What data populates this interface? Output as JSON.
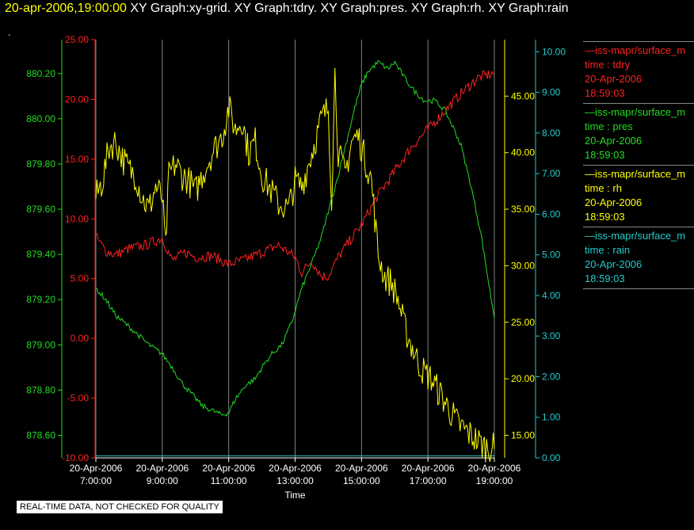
{
  "header": {
    "datetime": "20-apr-2006,19:00:00",
    "graphs": "XY Graph:xy-grid.  XY Graph:tdry.  XY Graph:pres.  XY Graph:rh.  XY Graph:rain"
  },
  "dot": ".",
  "quality_note": "REAL-TIME DATA, NOT CHECKED FOR QUALITY",
  "legend": [
    {
      "source": "—iss-mapr/surface_m",
      "field": "time : tdry",
      "date": "20-Apr-2006",
      "time": "18:59:03",
      "color": "#ff2020"
    },
    {
      "source": "—iss-mapr/surface_m",
      "field": "time : pres",
      "date": "20-Apr-2006",
      "time": "18:59:03",
      "color": "#22dd22"
    },
    {
      "source": "—iss-mapr/surface_m",
      "field": "time : rh",
      "date": "20-Apr-2006",
      "time": "18:59:03",
      "color": "#ffff00"
    },
    {
      "source": "—iss-mapr/surface_m",
      "field": "time : rain",
      "date": "20-Apr-2006",
      "time": "18:59:03",
      "color": "#22cccc"
    }
  ],
  "chart_data": {
    "type": "line",
    "xlabel": "Time",
    "x_ticks": [
      {
        "t": 7,
        "date": "20-Apr-2006",
        "time": "7:00:00"
      },
      {
        "t": 9,
        "date": "20-Apr-2006",
        "time": "9:00:00"
      },
      {
        "t": 11,
        "date": "20-Apr-2006",
        "time": "11:00:00"
      },
      {
        "t": 13,
        "date": "20-Apr-2006",
        "time": "13:00:00"
      },
      {
        "t": 15,
        "date": "20-Apr-2006",
        "time": "15:00:00"
      },
      {
        "t": 17,
        "date": "20-Apr-2006",
        "time": "17:00:00"
      },
      {
        "t": 19,
        "date": "20-Apr-2006",
        "time": "19:00:00"
      }
    ],
    "xlim": [
      7,
      19
    ],
    "grid": "vertical",
    "axes": {
      "tdry": {
        "color": "#ff2020",
        "ylim": [
          -10,
          25
        ],
        "ticks": [
          "-10.00",
          "-5.00",
          "0.00",
          "5.00",
          "10.00",
          "15.00",
          "20.00",
          "25.00"
        ]
      },
      "pres": {
        "color": "#22dd22",
        "ylim": [
          878.5,
          880.35
        ],
        "ticks": [
          "878.60",
          "878.80",
          "879.00",
          "879.20",
          "879.40",
          "879.60",
          "879.80",
          "880.00",
          "880.20"
        ]
      },
      "rh": {
        "color": "#ffff00",
        "ylim": [
          13,
          50
        ],
        "ticks": [
          "15.00",
          "20.00",
          "25.00",
          "30.00",
          "35.00",
          "40.00",
          "45.00"
        ]
      },
      "rain": {
        "color": "#22cccc",
        "ylim": [
          0,
          10.3
        ],
        "ticks": [
          "0.00",
          "1.00",
          "2.00",
          "3.00",
          "4.00",
          "5.00",
          "6.00",
          "7.00",
          "8.00",
          "9.00",
          "10.00"
        ]
      }
    },
    "series": [
      {
        "axis": "rain",
        "color": "#22cccc",
        "points": [
          [
            7,
            0.05
          ],
          [
            19,
            0.05
          ]
        ]
      },
      {
        "axis": "tdry",
        "color": "#ff2020",
        "points": [
          [
            7,
            8.5
          ],
          [
            7.3,
            7.3
          ],
          [
            7.6,
            7.0
          ],
          [
            8,
            7.5
          ],
          [
            8.5,
            7.8
          ],
          [
            9,
            8.4
          ],
          [
            9.3,
            6.5
          ],
          [
            9.7,
            7.2
          ],
          [
            10,
            6.8
          ],
          [
            10.5,
            6.9
          ],
          [
            11,
            6.2
          ],
          [
            11.5,
            6.6
          ],
          [
            12,
            7.2
          ],
          [
            12.5,
            7.8
          ],
          [
            13,
            6.8
          ],
          [
            13.2,
            5.5
          ],
          [
            13.5,
            6.5
          ],
          [
            13.8,
            5.2
          ],
          [
            14,
            5.2
          ],
          [
            14.3,
            6.8
          ],
          [
            14.6,
            8.0
          ],
          [
            15,
            9.5
          ],
          [
            15.5,
            12.0
          ],
          [
            16,
            14.0
          ],
          [
            16.5,
            16.0
          ],
          [
            17,
            17.5
          ],
          [
            17.5,
            19.0
          ],
          [
            18,
            20.5
          ],
          [
            18.5,
            21.8
          ],
          [
            19,
            22.2
          ]
        ]
      },
      {
        "axis": "rh",
        "color": "#ffff00",
        "points": [
          [
            7,
            36
          ],
          [
            7.2,
            37.5
          ],
          [
            7.4,
            40.5
          ],
          [
            7.6,
            41
          ],
          [
            7.8,
            39.5
          ],
          [
            8,
            38.5
          ],
          [
            8.2,
            38
          ],
          [
            8.4,
            36
          ],
          [
            8.6,
            35
          ],
          [
            8.8,
            37
          ],
          [
            9,
            36
          ],
          [
            9.1,
            31.5
          ],
          [
            9.2,
            38
          ],
          [
            9.4,
            39
          ],
          [
            9.6,
            38
          ],
          [
            9.8,
            37.5
          ],
          [
            10,
            36.5
          ],
          [
            10.2,
            38
          ],
          [
            10.5,
            40
          ],
          [
            10.8,
            41.5
          ],
          [
            11,
            44
          ],
          [
            11.2,
            42
          ],
          [
            11.4,
            43
          ],
          [
            11.6,
            40
          ],
          [
            11.8,
            41
          ],
          [
            12,
            38
          ],
          [
            12.2,
            37
          ],
          [
            12.5,
            35.5
          ],
          [
            12.8,
            35
          ],
          [
            13,
            37.5
          ],
          [
            13.2,
            37
          ],
          [
            13.4,
            39
          ],
          [
            13.6,
            41
          ],
          [
            13.8,
            43
          ],
          [
            14,
            44
          ],
          [
            14.1,
            36
          ],
          [
            14.2,
            47
          ],
          [
            14.3,
            40
          ],
          [
            14.5,
            38
          ],
          [
            14.7,
            41
          ],
          [
            14.9,
            41.5
          ],
          [
            15.1,
            39.5
          ],
          [
            15.3,
            37.5
          ],
          [
            15.5,
            31
          ],
          [
            15.7,
            29
          ],
          [
            15.9,
            28.5
          ],
          [
            16.1,
            27
          ],
          [
            16.3,
            24.5
          ],
          [
            16.5,
            23
          ],
          [
            16.7,
            21.5
          ],
          [
            16.9,
            20.5
          ],
          [
            17.1,
            20
          ],
          [
            17.3,
            19
          ],
          [
            17.5,
            18
          ],
          [
            17.7,
            17
          ],
          [
            17.9,
            16
          ],
          [
            18.1,
            15.5
          ],
          [
            18.3,
            15
          ],
          [
            18.5,
            14.5
          ],
          [
            18.7,
            14
          ],
          [
            18.9,
            14
          ],
          [
            19,
            13.8
          ]
        ]
      },
      {
        "axis": "pres",
        "color": "#22dd22",
        "points": [
          [
            7,
            879.25
          ],
          [
            7.3,
            879.2
          ],
          [
            7.6,
            879.13
          ],
          [
            8,
            879.08
          ],
          [
            8.3,
            879.04
          ],
          [
            8.6,
            879.0
          ],
          [
            9,
            878.96
          ],
          [
            9.3,
            878.9
          ],
          [
            9.6,
            878.83
          ],
          [
            9.9,
            878.78
          ],
          [
            10.2,
            878.73
          ],
          [
            10.5,
            878.71
          ],
          [
            10.8,
            878.69
          ],
          [
            11,
            878.7
          ],
          [
            11.2,
            878.76
          ],
          [
            11.5,
            878.82
          ],
          [
            11.8,
            878.85
          ],
          [
            12,
            878.9
          ],
          [
            12.3,
            878.96
          ],
          [
            12.6,
            879.0
          ],
          [
            12.9,
            879.1
          ],
          [
            13.2,
            879.25
          ],
          [
            13.5,
            879.36
          ],
          [
            13.8,
            879.48
          ],
          [
            14,
            879.59
          ],
          [
            14.3,
            879.75
          ],
          [
            14.6,
            879.93
          ],
          [
            14.8,
            880.05
          ],
          [
            15,
            880.15
          ],
          [
            15.2,
            880.21
          ],
          [
            15.5,
            880.25
          ],
          [
            15.8,
            880.22
          ],
          [
            16,
            880.25
          ],
          [
            16.3,
            880.18
          ],
          [
            16.6,
            880.12
          ],
          [
            16.9,
            880.08
          ],
          [
            17.2,
            880.08
          ],
          [
            17.5,
            880.04
          ],
          [
            17.8,
            879.95
          ],
          [
            18,
            879.88
          ],
          [
            18.3,
            879.7
          ],
          [
            18.6,
            879.49
          ],
          [
            18.8,
            879.3
          ],
          [
            19,
            879.12
          ]
        ]
      }
    ]
  }
}
